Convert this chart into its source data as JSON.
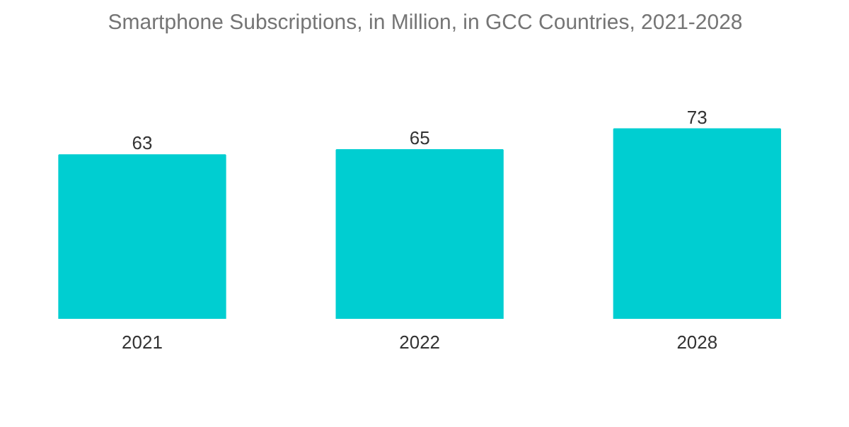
{
  "chart_data": {
    "type": "bar",
    "title": "Smartphone Subscriptions, in Million, in GCC Countries, 2021-2028",
    "categories": [
      "2021",
      "2022",
      "2028"
    ],
    "values": [
      63,
      65,
      73
    ],
    "color": "#00ced1",
    "data_labels": true
  }
}
